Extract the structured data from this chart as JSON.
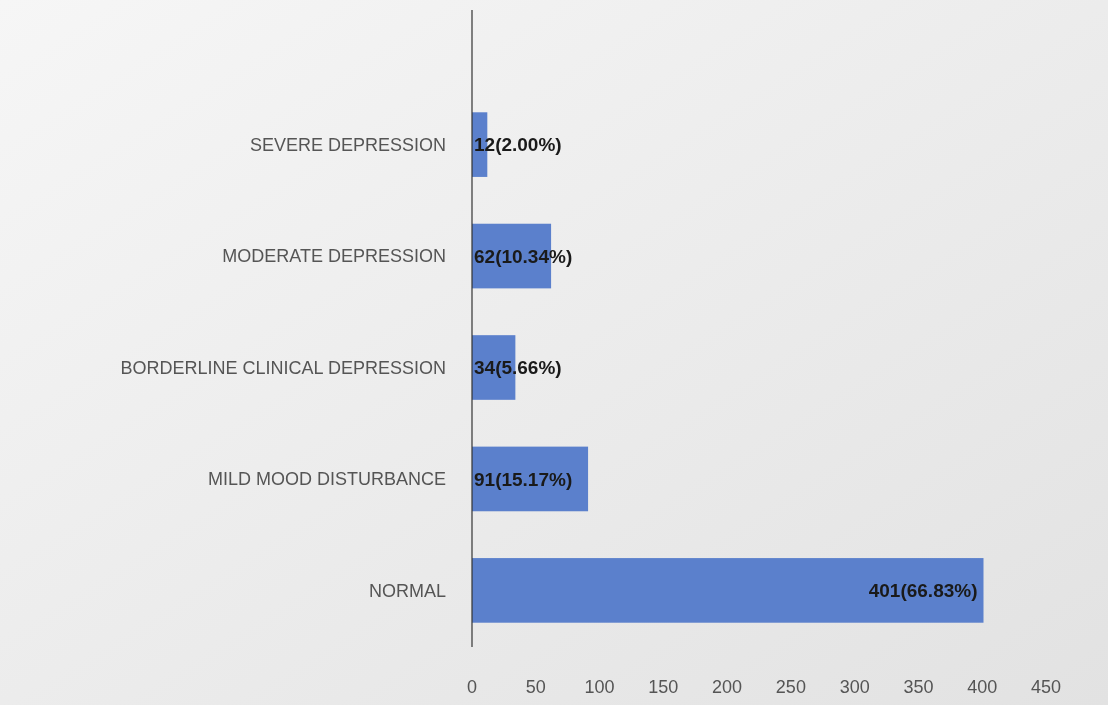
{
  "chart_data": {
    "type": "bar",
    "orientation": "horizontal",
    "categories": [
      "SEVERE DEPRESSION",
      "MODERATE DEPRESSION",
      "BORDERLINE CLINICAL DEPRESSION",
      "MILD MOOD DISTURBANCE",
      "NORMAL"
    ],
    "values": [
      12,
      62,
      34,
      91,
      401
    ],
    "value_labels": [
      "12(2.00%)",
      "62(10.34%)",
      "34(5.66%)",
      "91(15.17%)",
      "401(66.83%)"
    ],
    "color": "#5b80cc",
    "xlim": [
      0,
      450
    ],
    "xticks": [
      0,
      50,
      100,
      150,
      200,
      250,
      300,
      350,
      400,
      450
    ],
    "grid": false
  }
}
